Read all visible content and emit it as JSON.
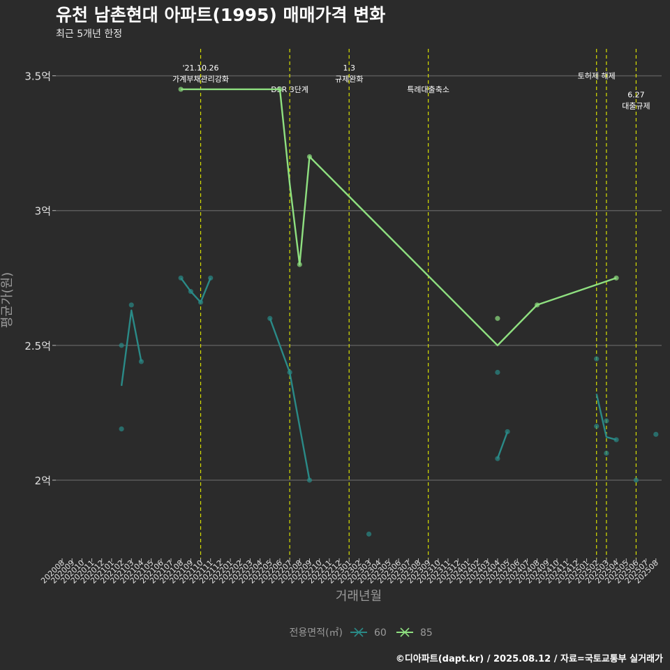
{
  "chart_data": {
    "type": "line",
    "title": "유천 남촌현대 아파트(1995) 매매가격 변화",
    "subtitle": "최근 5개년 한정",
    "xlabel": "거래년월",
    "ylabel": "평균가(원)",
    "caption": "©디아파트(dapt.kr) / 2025.08.12 / 자료=국토교통부 실거래가",
    "y_ticks": [
      {
        "value": 2.0,
        "label": "2억"
      },
      {
        "value": 2.5,
        "label": "2.5억"
      },
      {
        "value": 3.0,
        "label": "3억"
      },
      {
        "value": 3.5,
        "label": "3.5억"
      }
    ],
    "ylim": [
      1.71,
      3.6
    ],
    "x_ticks": [
      "202008",
      "202009",
      "202010",
      "202011",
      "202012",
      "202101",
      "202102",
      "202103",
      "202104",
      "202105",
      "202106",
      "202107",
      "202108",
      "202109",
      "202110",
      "202111",
      "202112",
      "202201",
      "202202",
      "202203",
      "202204",
      "202205",
      "202206",
      "202207",
      "202208",
      "202209",
      "202210",
      "202211",
      "202212",
      "202301",
      "202302",
      "202303",
      "202304",
      "202305",
      "202306",
      "202307",
      "202308",
      "202309",
      "202310",
      "202311",
      "202312",
      "202401",
      "202402",
      "202403",
      "202404",
      "202405",
      "202406",
      "202407",
      "202408",
      "202409",
      "202410",
      "202411",
      "202412",
      "202501",
      "202502",
      "202503",
      "202504",
      "202505",
      "202506",
      "202507",
      "202508"
    ],
    "legend": {
      "title": "전용면적(㎡)",
      "entries": [
        {
          "label": "60",
          "color": "#2a8a87"
        },
        {
          "label": "85",
          "color": "#8fe080"
        }
      ]
    },
    "events": [
      {
        "x": "202110",
        "label_lines": [
          "'21.10.26",
          "가계부채관리강화"
        ],
        "label_y": 3.52
      },
      {
        "x": "202207",
        "label_lines": [
          "DSR 3단계"
        ],
        "label_y": 3.44
      },
      {
        "x": "202301",
        "label_lines": [
          "1.3",
          "규제완화"
        ],
        "label_y": 3.52
      },
      {
        "x": "202309",
        "label_lines": [
          "특례대출축소"
        ],
        "label_y": 3.44
      },
      {
        "x": "202502",
        "label_lines": [
          "토허제 해제"
        ],
        "label_y": 3.49
      },
      {
        "x": "202503",
        "label_lines": [],
        "label_y": 3.49
      },
      {
        "x": "202506",
        "label_lines": [
          "6.27",
          "대출규제"
        ],
        "label_y": 3.42
      }
    ],
    "series": [
      {
        "name": "60",
        "color": "#2a8a87",
        "line_segments": [
          [
            [
              "202102",
              2.35
            ],
            [
              "202103",
              2.63
            ],
            [
              "202104",
              2.44
            ]
          ],
          [
            [
              "202108",
              2.75
            ],
            [
              "202109",
              2.7
            ],
            [
              "202110",
              2.66
            ],
            [
              "202111",
              2.75
            ]
          ],
          [
            [
              "202205",
              2.6
            ],
            [
              "202207",
              2.4
            ],
            [
              "202209",
              2.0
            ]
          ],
          [
            [
              "202404",
              2.08
            ],
            [
              "202405",
              2.18
            ]
          ],
          [
            [
              "202502",
              2.32
            ],
            [
              "202503",
              2.16
            ],
            [
              "202504",
              2.15
            ]
          ]
        ],
        "points": [
          [
            "202102",
            2.5
          ],
          [
            "202102",
            2.19
          ],
          [
            "202103",
            2.65
          ],
          [
            "202104",
            2.44
          ],
          [
            "202108",
            2.75
          ],
          [
            "202109",
            2.7
          ],
          [
            "202110",
            2.66
          ],
          [
            "202111",
            2.75
          ],
          [
            "202205",
            2.6
          ],
          [
            "202207",
            2.4
          ],
          [
            "202209",
            2.0
          ],
          [
            "202303",
            1.8
          ],
          [
            "202404",
            2.08
          ],
          [
            "202404",
            2.4
          ],
          [
            "202405",
            2.18
          ],
          [
            "202502",
            2.45
          ],
          [
            "202502",
            2.2
          ],
          [
            "202503",
            2.22
          ],
          [
            "202503",
            2.1
          ],
          [
            "202504",
            2.15
          ],
          [
            "202506",
            2.0
          ],
          [
            "202508",
            2.17
          ]
        ]
      },
      {
        "name": "85",
        "color": "#8fe080",
        "line_segments": [
          [
            [
              "202108",
              3.45
            ],
            [
              "202206",
              3.45
            ],
            [
              "202207",
              3.1
            ],
            [
              "202208",
              2.8
            ],
            [
              "202209",
              3.2
            ],
            [
              "202404",
              2.5
            ],
            [
              "202408",
              2.65
            ],
            [
              "202504",
              2.75
            ]
          ]
        ],
        "points": [
          [
            "202108",
            3.45
          ],
          [
            "202206",
            3.45
          ],
          [
            "202208",
            2.8
          ],
          [
            "202209",
            3.2
          ],
          [
            "202404",
            2.6
          ],
          [
            "202408",
            2.65
          ],
          [
            "202504",
            2.75
          ]
        ]
      }
    ]
  }
}
